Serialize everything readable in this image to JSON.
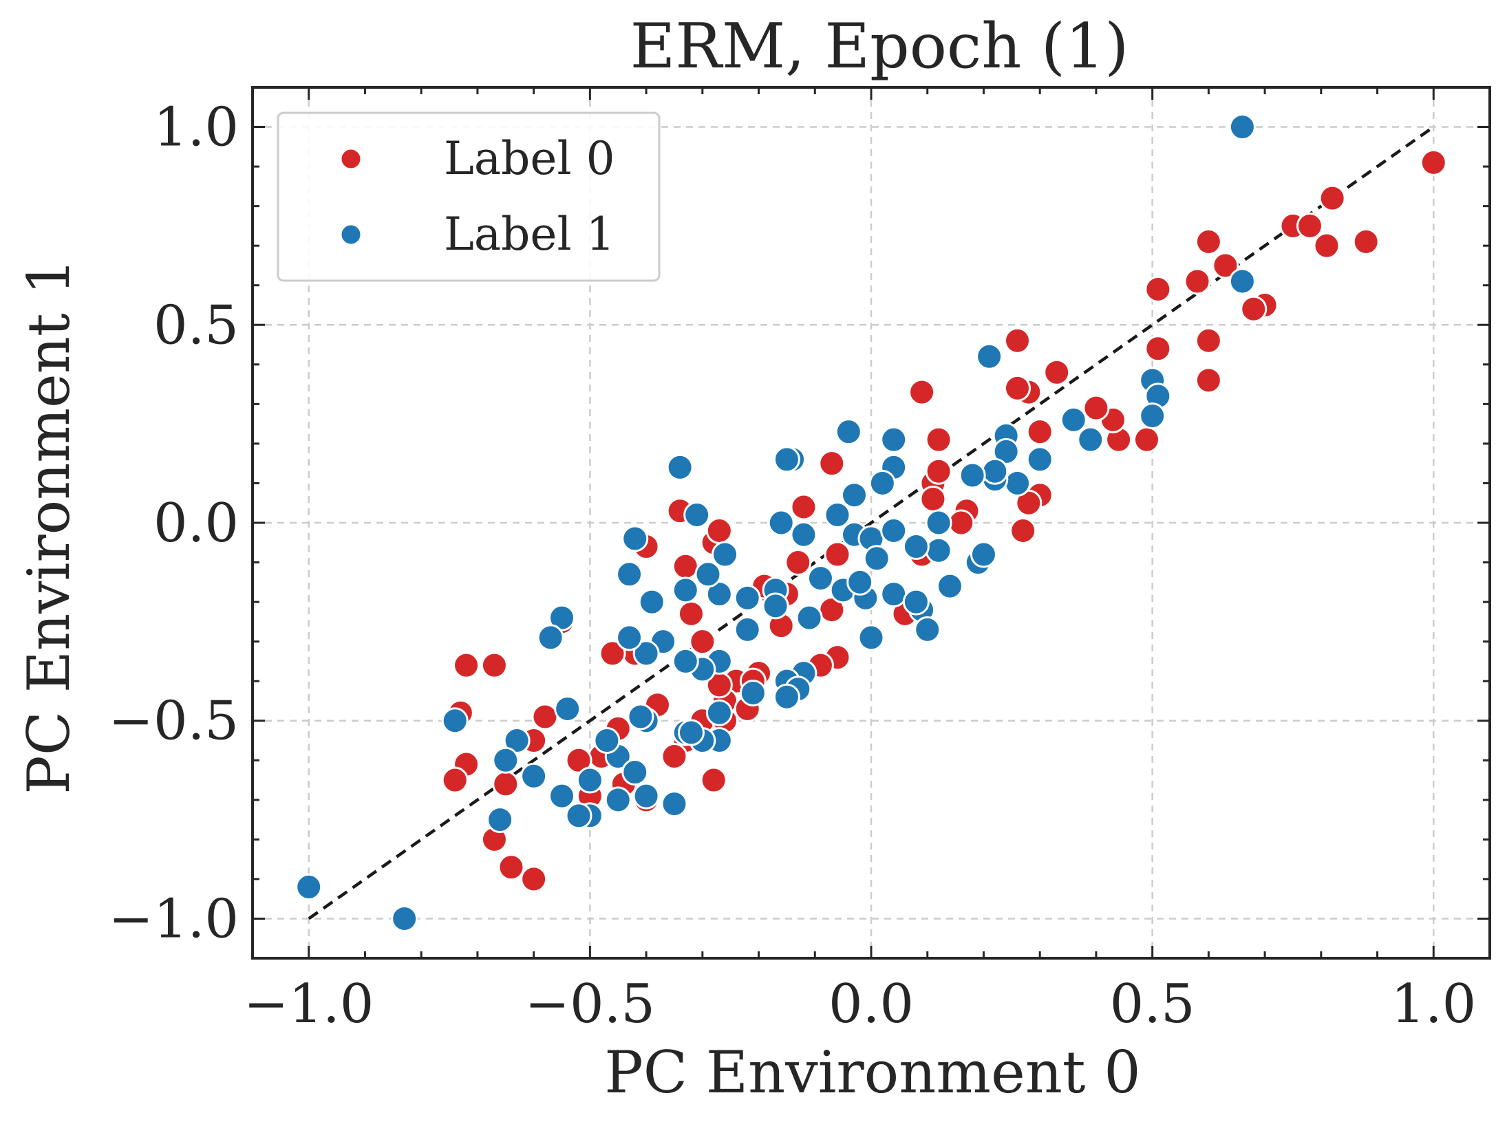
{
  "chart_data": {
    "type": "scatter",
    "title": "ERM, Epoch (1)",
    "xlabel": "PC Environment 0",
    "ylabel": "PC Environment 1",
    "xlim": [
      -1.1,
      1.1
    ],
    "ylim": [
      -1.1,
      1.1
    ],
    "xticks": [
      -1.0,
      -0.5,
      0.0,
      0.5,
      1.0
    ],
    "yticks": [
      -1.0,
      -0.5,
      0.0,
      0.5,
      1.0
    ],
    "xtick_labels": [
      "−1.0",
      "−0.5",
      "0.0",
      "0.5",
      "1.0"
    ],
    "ytick_labels": [
      "−1.0",
      "−0.5",
      "0.0",
      "0.5",
      "1.0"
    ],
    "grid": true,
    "legend_position": "top-left",
    "reference_line": {
      "style": "dashed",
      "color": "#1a1a1a",
      "from": [
        -1.0,
        -1.0
      ],
      "to": [
        1.0,
        1.0
      ]
    },
    "series": [
      {
        "name": "Label 0",
        "color": "#d62728",
        "points": [
          [
            1.0,
            0.91
          ],
          [
            0.82,
            0.82
          ],
          [
            0.81,
            0.7
          ],
          [
            0.88,
            0.71
          ],
          [
            0.75,
            0.75
          ],
          [
            0.78,
            0.75
          ],
          [
            0.7,
            0.55
          ],
          [
            0.68,
            0.54
          ],
          [
            0.63,
            0.65
          ],
          [
            0.6,
            0.71
          ],
          [
            0.58,
            0.61
          ],
          [
            0.6,
            0.46
          ],
          [
            0.6,
            0.36
          ],
          [
            0.51,
            0.59
          ],
          [
            0.51,
            0.44
          ],
          [
            0.49,
            0.21
          ],
          [
            0.44,
            0.21
          ],
          [
            0.43,
            0.26
          ],
          [
            0.4,
            0.29
          ],
          [
            0.33,
            0.38
          ],
          [
            0.26,
            0.46
          ],
          [
            0.28,
            0.33
          ],
          [
            0.26,
            0.34
          ],
          [
            0.3,
            0.23
          ],
          [
            0.3,
            0.07
          ],
          [
            0.28,
            0.05
          ],
          [
            0.27,
            -0.02
          ],
          [
            0.12,
            0.21
          ],
          [
            0.09,
            0.33
          ],
          [
            0.11,
            0.1
          ],
          [
            0.12,
            0.13
          ],
          [
            0.11,
            0.06
          ],
          [
            0.17,
            0.03
          ],
          [
            0.16,
            0.0
          ],
          [
            0.09,
            -0.08
          ],
          [
            0.06,
            -0.23
          ],
          [
            -0.07,
            0.15
          ],
          [
            -0.06,
            -0.08
          ],
          [
            -0.06,
            -0.34
          ],
          [
            -0.07,
            -0.22
          ],
          [
            -0.12,
            0.04
          ],
          [
            -0.13,
            -0.1
          ],
          [
            -0.15,
            -0.18
          ],
          [
            -0.16,
            -0.26
          ],
          [
            -0.2,
            -0.38
          ],
          [
            -0.24,
            -0.4
          ],
          [
            -0.28,
            -0.05
          ],
          [
            -0.27,
            -0.02
          ],
          [
            -0.3,
            -0.3
          ],
          [
            -0.32,
            -0.23
          ],
          [
            -0.33,
            -0.11
          ],
          [
            -0.3,
            -0.5
          ],
          [
            -0.33,
            -0.55
          ],
          [
            -0.26,
            -0.45
          ],
          [
            -0.27,
            -0.41
          ],
          [
            -0.26,
            -0.5
          ],
          [
            -0.34,
            0.03
          ],
          [
            -0.4,
            -0.06
          ],
          [
            -0.42,
            -0.33
          ],
          [
            -0.46,
            -0.33
          ],
          [
            -0.38,
            -0.46
          ],
          [
            -0.35,
            -0.59
          ],
          [
            -0.28,
            -0.65
          ],
          [
            -0.4,
            -0.7
          ],
          [
            -0.44,
            -0.66
          ],
          [
            -0.45,
            -0.52
          ],
          [
            -0.48,
            -0.59
          ],
          [
            -0.5,
            -0.69
          ],
          [
            -0.52,
            -0.6
          ],
          [
            -0.55,
            -0.25
          ],
          [
            -0.58,
            -0.49
          ],
          [
            -0.6,
            -0.55
          ],
          [
            -0.63,
            -0.55
          ],
          [
            -0.65,
            -0.66
          ],
          [
            -0.67,
            -0.8
          ],
          [
            -0.64,
            -0.87
          ],
          [
            -0.6,
            -0.9
          ],
          [
            -0.67,
            -0.36
          ],
          [
            -0.72,
            -0.61
          ],
          [
            -0.73,
            -0.48
          ],
          [
            -0.74,
            -0.65
          ],
          [
            -0.72,
            -0.36
          ],
          [
            -0.19,
            -0.16
          ],
          [
            -0.09,
            -0.36
          ],
          [
            -0.22,
            -0.47
          ],
          [
            -0.21,
            -0.4
          ]
        ]
      },
      {
        "name": "Label 1",
        "color": "#1f77b4",
        "points": [
          [
            0.66,
            1.0
          ],
          [
            0.66,
            0.61
          ],
          [
            0.21,
            0.42
          ],
          [
            0.5,
            0.36
          ],
          [
            0.51,
            0.32
          ],
          [
            0.5,
            0.27
          ],
          [
            0.39,
            0.21
          ],
          [
            0.36,
            0.26
          ],
          [
            0.3,
            0.16
          ],
          [
            0.24,
            0.22
          ],
          [
            0.24,
            0.18
          ],
          [
            0.26,
            0.1
          ],
          [
            0.22,
            0.11
          ],
          [
            0.22,
            0.13
          ],
          [
            0.18,
            0.12
          ],
          [
            0.12,
            0.0
          ],
          [
            0.12,
            -0.07
          ],
          [
            0.08,
            -0.06
          ],
          [
            0.14,
            -0.16
          ],
          [
            0.19,
            -0.1
          ],
          [
            0.2,
            -0.08
          ],
          [
            0.09,
            -0.22
          ],
          [
            0.1,
            -0.27
          ],
          [
            0.04,
            0.21
          ],
          [
            0.04,
            0.14
          ],
          [
            0.02,
            0.1
          ],
          [
            -0.04,
            0.23
          ],
          [
            -0.03,
            0.07
          ],
          [
            -0.06,
            0.02
          ],
          [
            -0.03,
            -0.03
          ],
          [
            0.0,
            -0.04
          ],
          [
            0.01,
            -0.09
          ],
          [
            0.04,
            -0.02
          ],
          [
            -0.05,
            -0.17
          ],
          [
            -0.01,
            -0.19
          ],
          [
            0.0,
            -0.29
          ],
          [
            -0.02,
            -0.15
          ],
          [
            0.04,
            -0.18
          ],
          [
            0.08,
            -0.2
          ],
          [
            -0.09,
            -0.14
          ],
          [
            -0.11,
            -0.24
          ],
          [
            -0.12,
            -0.38
          ],
          [
            -0.14,
            0.16
          ],
          [
            -0.15,
            0.16
          ],
          [
            -0.12,
            -0.03
          ],
          [
            -0.16,
            0.0
          ],
          [
            -0.17,
            -0.17
          ],
          [
            -0.17,
            -0.21
          ],
          [
            -0.15,
            -0.4
          ],
          [
            -0.13,
            -0.42
          ],
          [
            -0.15,
            -0.44
          ],
          [
            -0.21,
            -0.43
          ],
          [
            -0.22,
            -0.27
          ],
          [
            -0.22,
            -0.19
          ],
          [
            -0.26,
            -0.08
          ],
          [
            -0.27,
            -0.18
          ],
          [
            -0.27,
            -0.35
          ],
          [
            -0.27,
            -0.48
          ],
          [
            -0.27,
            -0.55
          ],
          [
            -0.29,
            -0.13
          ],
          [
            -0.3,
            -0.37
          ],
          [
            -0.3,
            -0.55
          ],
          [
            -0.31,
            0.02
          ],
          [
            -0.33,
            -0.17
          ],
          [
            -0.33,
            -0.35
          ],
          [
            -0.33,
            -0.53
          ],
          [
            -0.34,
            0.14
          ],
          [
            -0.35,
            -0.71
          ],
          [
            -0.37,
            -0.3
          ],
          [
            -0.39,
            -0.2
          ],
          [
            -0.4,
            -0.33
          ],
          [
            -0.4,
            -0.5
          ],
          [
            -0.41,
            -0.49
          ],
          [
            -0.42,
            -0.04
          ],
          [
            -0.4,
            -0.69
          ],
          [
            -0.43,
            -0.13
          ],
          [
            -0.43,
            -0.29
          ],
          [
            -0.45,
            -0.59
          ],
          [
            -0.45,
            -0.7
          ],
          [
            -0.47,
            -0.55
          ],
          [
            -0.5,
            -0.65
          ],
          [
            -0.5,
            -0.74
          ],
          [
            -0.52,
            -0.74
          ],
          [
            -0.54,
            -0.47
          ],
          [
            -0.55,
            -0.69
          ],
          [
            -0.55,
            -0.24
          ],
          [
            -0.57,
            -0.29
          ],
          [
            -0.6,
            -0.64
          ],
          [
            -0.63,
            -0.55
          ],
          [
            -0.65,
            -0.6
          ],
          [
            -0.66,
            -0.75
          ],
          [
            -0.74,
            -0.5
          ],
          [
            -0.83,
            -1.0
          ],
          [
            -1.0,
            -0.92
          ],
          [
            -0.42,
            -0.63
          ],
          [
            -0.32,
            -0.53
          ]
        ]
      }
    ]
  }
}
